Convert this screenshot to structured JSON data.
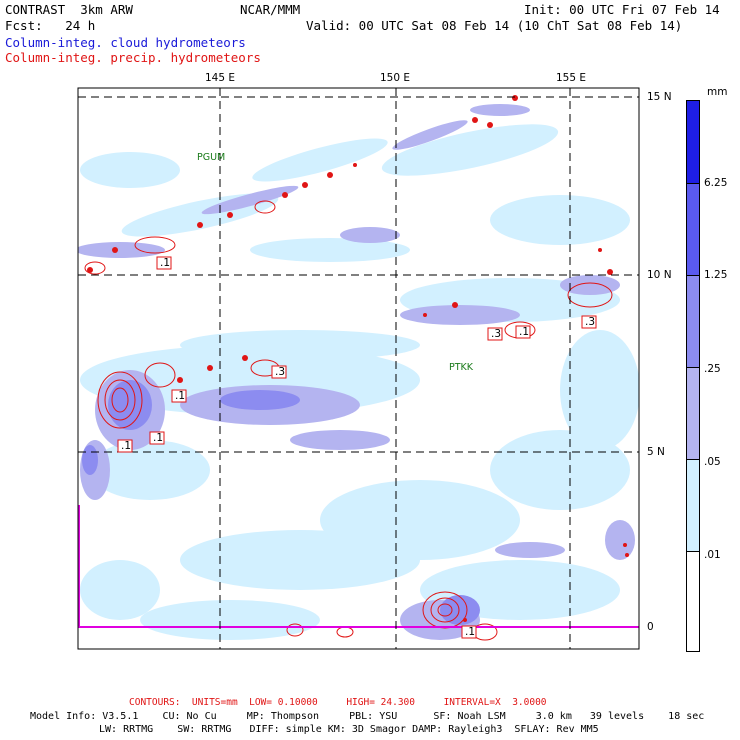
{
  "header": {
    "left1": "CONTRAST  3km ARW",
    "center1": "NCAR/MMM",
    "right1": "Init: 00 UTC Fri 07 Feb 14",
    "left2": "Fcst:   24 h",
    "right2": "Valid: 00 UTC Sat 08 Feb 14 (10 ChT Sat 08 Feb 14)",
    "field1": "Column-integ. cloud hydrometeors",
    "field2": "Column-integ. precip. hydrometeors"
  },
  "map": {
    "lon_labels": [
      "145 E",
      "150 E",
      "155 E"
    ],
    "lat_labels": [
      "15 N",
      "10 N",
      "5 N",
      "0"
    ],
    "stations": [
      "PGUM",
      "PTKK"
    ],
    "contour_labels": [
      ".1",
      ".1",
      ".1",
      ".1",
      ".3",
      ".3",
      ".1",
      ".3",
      ".1"
    ]
  },
  "legend": {
    "unit": "mm",
    "levels": [
      "6.25",
      "1.25",
      ".25",
      ".05",
      ".01"
    ],
    "colors": [
      "#1e1ee6",
      "#5a5af0",
      "#8c8cf0",
      "#b4b4f0",
      "#d2f0ff",
      "#ffffff"
    ]
  },
  "footer": {
    "contours": "CONTOURS:  UNITS=mm  LOW= 0.10000     HIGH= 24.300     INTERVAL=X  3.0000",
    "model1": "Model Info: V3.5.1    CU: No Cu     MP: Thompson     PBL: YSU      SF: Noah LSM     3.0 km   39 levels    18 sec",
    "model2": "LW: RRTMG    SW: RRTMG   DIFF: simple KM: 3D Smagor DAMP: Rayleigh3  SFLAY: Rev MM5"
  }
}
